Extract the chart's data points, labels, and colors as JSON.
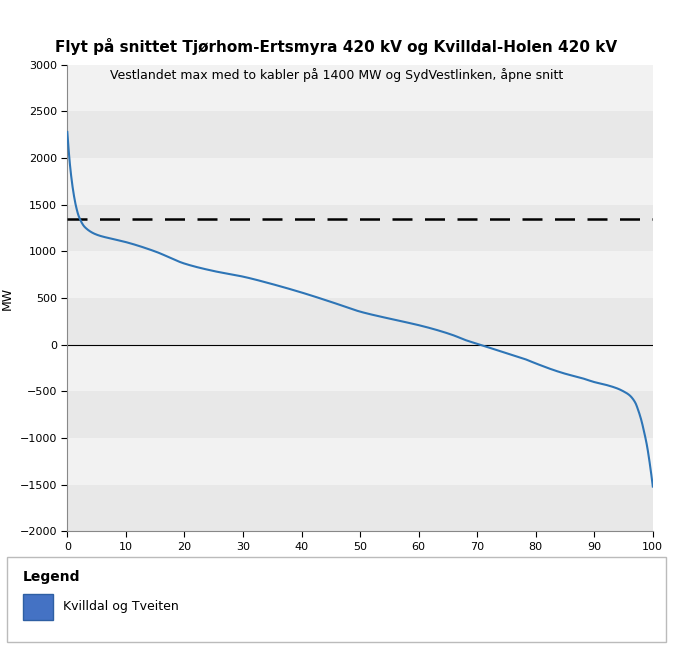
{
  "title": "Flyt på snittet Tjørhom-Ertsmyra 420 kV og Kvilldal-Holen 420 kV",
  "subtitle": "Vestlandet max med to kabler på 1400 MW og SydVestlinken, åpne snitt",
  "xlabel": "",
  "ylabel": "MW",
  "xlim": [
    0,
    100
  ],
  "ylim": [
    -2000,
    3000
  ],
  "yticks": [
    -2000,
    -1500,
    -1000,
    -500,
    0,
    500,
    1000,
    1500,
    2000,
    2500,
    3000
  ],
  "xticks": [
    0,
    10,
    20,
    30,
    40,
    50,
    60,
    70,
    80,
    90,
    100
  ],
  "dashed_line_y": 1350,
  "zero_line_y": 0,
  "line_color": "#2E75B6",
  "dashed_line_color": "#000000",
  "zero_line_color": "#000000",
  "bg_color": "#ffffff",
  "band_colors": [
    "#e8e8e8",
    "#f2f2f2"
  ],
  "legend_label": "Kvilldal og Tveiten",
  "legend_icon_color": "#4472C4",
  "legend_icon_edge_color": "#2E5FA3",
  "title_fontsize": 11,
  "subtitle_fontsize": 9,
  "ylabel_fontsize": 9,
  "tick_fontsize": 8,
  "legend_fontsize": 9,
  "legend_title_fontsize": 10
}
